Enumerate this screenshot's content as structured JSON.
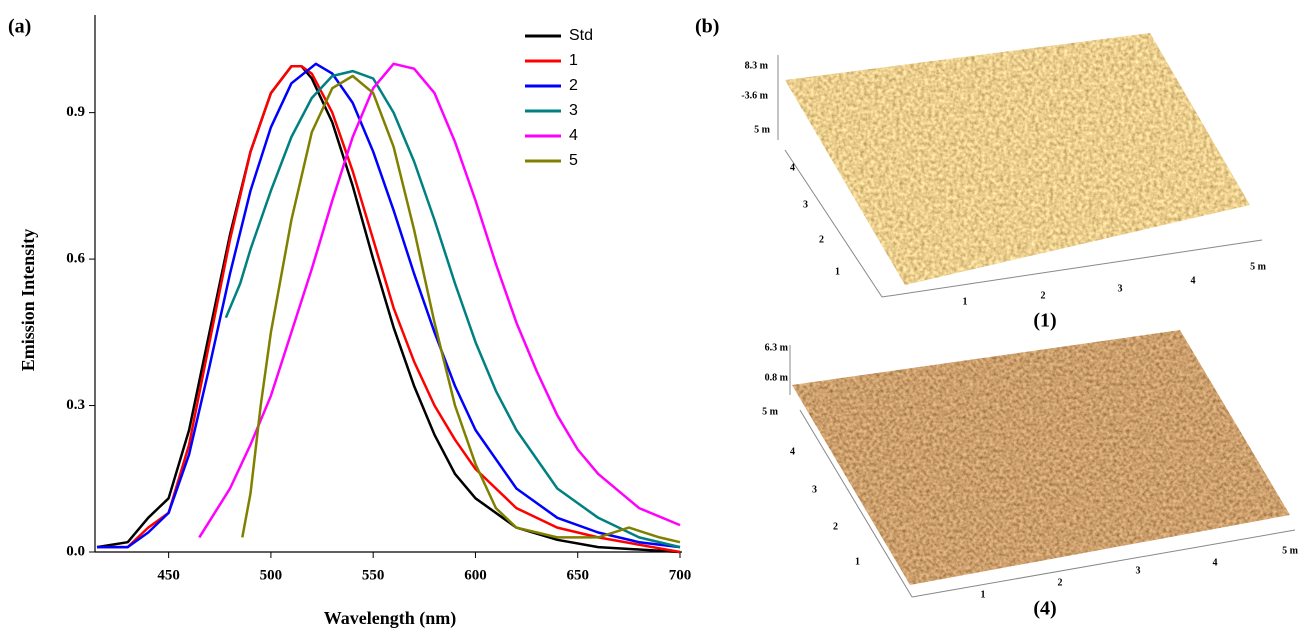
{
  "chart_data": {
    "type": "line",
    "panel_label": "(a)",
    "x_label": "Wavelength (nm)",
    "y_label": "Emission Intensity",
    "xlim": [
      414,
      700
    ],
    "xticks": [
      450,
      500,
      550,
      600,
      650,
      700
    ],
    "ylim": [
      0,
      1.1
    ],
    "yticks": [
      {
        "value": 0,
        "label": "0.0"
      },
      0.3,
      0.6,
      0.9
    ],
    "legend": "upper right",
    "series": [
      {
        "name": "Std",
        "color": "#000000",
        "x": [
          415,
          430,
          440,
          450,
          460,
          470,
          480,
          490,
          500,
          510,
          515,
          520,
          530,
          540,
          550,
          560,
          570,
          580,
          590,
          600,
          620,
          640,
          660,
          700
        ],
        "values": [
          0.01,
          0.02,
          0.07,
          0.11,
          0.25,
          0.45,
          0.65,
          0.82,
          0.94,
          0.995,
          0.995,
          0.97,
          0.88,
          0.75,
          0.6,
          0.46,
          0.34,
          0.24,
          0.16,
          0.11,
          0.05,
          0.025,
          0.01,
          0.0
        ]
      },
      {
        "name": "1",
        "color": "#ff0000",
        "x": [
          415,
          430,
          440,
          450,
          460,
          470,
          480,
          490,
          500,
          510,
          515,
          520,
          530,
          540,
          550,
          560,
          570,
          580,
          590,
          600,
          620,
          640,
          660,
          700
        ],
        "values": [
          0.01,
          0.01,
          0.05,
          0.08,
          0.22,
          0.43,
          0.64,
          0.82,
          0.94,
          0.995,
          0.995,
          0.98,
          0.9,
          0.78,
          0.64,
          0.5,
          0.39,
          0.3,
          0.23,
          0.17,
          0.09,
          0.05,
          0.03,
          0.0
        ]
      },
      {
        "name": "2",
        "color": "#0000ff",
        "x": [
          415,
          430,
          440,
          450,
          460,
          470,
          480,
          490,
          500,
          510,
          522,
          530,
          540,
          550,
          560,
          570,
          580,
          590,
          600,
          620,
          640,
          660,
          680,
          700
        ],
        "values": [
          0.01,
          0.01,
          0.04,
          0.08,
          0.2,
          0.38,
          0.57,
          0.74,
          0.87,
          0.96,
          1.0,
          0.98,
          0.92,
          0.82,
          0.7,
          0.57,
          0.45,
          0.34,
          0.25,
          0.13,
          0.07,
          0.04,
          0.02,
          0.01
        ]
      },
      {
        "name": "3",
        "color": "#008080",
        "x": [
          478,
          485,
          490,
          500,
          510,
          520,
          530,
          540,
          550,
          560,
          570,
          580,
          590,
          600,
          610,
          620,
          640,
          660,
          680,
          700
        ],
        "values": [
          0.48,
          0.55,
          0.62,
          0.74,
          0.85,
          0.93,
          0.975,
          0.985,
          0.97,
          0.9,
          0.8,
          0.68,
          0.55,
          0.43,
          0.33,
          0.25,
          0.13,
          0.07,
          0.03,
          0.01
        ]
      },
      {
        "name": "4",
        "color": "#ff00ff",
        "x": [
          465,
          480,
          490,
          500,
          510,
          520,
          530,
          540,
          550,
          560,
          570,
          580,
          590,
          600,
          610,
          620,
          630,
          640,
          650,
          660,
          680,
          700
        ],
        "values": [
          0.03,
          0.13,
          0.22,
          0.32,
          0.45,
          0.58,
          0.72,
          0.85,
          0.95,
          1.0,
          0.99,
          0.94,
          0.84,
          0.72,
          0.59,
          0.47,
          0.37,
          0.28,
          0.21,
          0.16,
          0.09,
          0.055
        ]
      },
      {
        "name": "5",
        "color": "#808000",
        "x": [
          486,
          490,
          495,
          500,
          510,
          520,
          530,
          540,
          550,
          560,
          570,
          580,
          590,
          600,
          610,
          620,
          640,
          660,
          675,
          690,
          700
        ],
        "values": [
          0.03,
          0.12,
          0.3,
          0.45,
          0.68,
          0.86,
          0.95,
          0.975,
          0.94,
          0.83,
          0.66,
          0.47,
          0.3,
          0.18,
          0.09,
          0.05,
          0.03,
          0.03,
          0.05,
          0.03,
          0.02
        ]
      }
    ]
  },
  "panel_b": {
    "label": "(b)",
    "images": [
      {
        "caption": "(1)",
        "z_labels": [
          "8.3 m",
          "-3.6 m"
        ],
        "y_labels": [
          "5 m",
          "4",
          "3",
          "2",
          "1"
        ],
        "x_labels": [
          "1",
          "2",
          "3",
          "4",
          "5 m"
        ]
      },
      {
        "caption": "(4)",
        "z_labels": [
          "6.3 m",
          "0.8 m"
        ],
        "y_labels": [
          "5 m",
          "4",
          "3",
          "2",
          "1"
        ],
        "x_labels": [
          "1",
          "2",
          "3",
          "4",
          "5 m"
        ]
      }
    ]
  }
}
